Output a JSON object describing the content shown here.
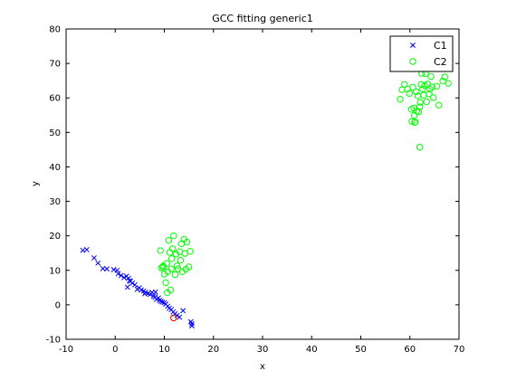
{
  "chart_data": {
    "type": "scatter",
    "title": "GCC fitting generic1",
    "xlabel": "x",
    "ylabel": "y",
    "xlim": [
      -10,
      70
    ],
    "ylim": [
      -10,
      80
    ],
    "xticks": [
      -10,
      0,
      10,
      20,
      30,
      40,
      50,
      60,
      70
    ],
    "yticks": [
      -10,
      0,
      10,
      20,
      30,
      40,
      50,
      60,
      70,
      80
    ],
    "grid": false,
    "legend_position": "top-right",
    "series": [
      {
        "name": "C1",
        "marker": "x",
        "color": "#0000ff",
        "points": [
          [
            -6.6,
            15.8
          ],
          [
            -5.8,
            16.0
          ],
          [
            -4.3,
            13.6
          ],
          [
            -3.5,
            12.1
          ],
          [
            -2.5,
            10.5
          ],
          [
            -1.7,
            10.4
          ],
          [
            -0.3,
            10.2
          ],
          [
            0.4,
            10.0
          ],
          [
            0.6,
            9.0
          ],
          [
            1.2,
            8.5
          ],
          [
            1.8,
            7.9
          ],
          [
            2.3,
            8.3
          ],
          [
            2.7,
            7.7
          ],
          [
            2.9,
            7.0
          ],
          [
            3.1,
            6.8
          ],
          [
            3.5,
            6.3
          ],
          [
            4.0,
            5.8
          ],
          [
            4.5,
            4.5
          ],
          [
            4.9,
            4.9
          ],
          [
            5.3,
            4.3
          ],
          [
            5.8,
            4.0
          ],
          [
            6.2,
            3.6
          ],
          [
            6.7,
            3.3
          ],
          [
            7.1,
            3.0
          ],
          [
            7.5,
            3.6
          ],
          [
            7.8,
            2.5
          ],
          [
            8.1,
            2.2
          ],
          [
            8.4,
            1.6
          ],
          [
            8.8,
            2.0
          ],
          [
            9.0,
            1.3
          ],
          [
            9.3,
            1.0
          ],
          [
            9.6,
            0.8
          ],
          [
            10.0,
            0.6
          ],
          [
            10.3,
            0.2
          ],
          [
            10.7,
            -0.4
          ],
          [
            11.0,
            -1.0
          ],
          [
            11.4,
            -1.4
          ],
          [
            11.8,
            -2.1
          ],
          [
            12.2,
            -2.6
          ],
          [
            12.6,
            -3.1
          ],
          [
            13.1,
            -3.6
          ],
          [
            13.8,
            -1.7
          ],
          [
            15.4,
            -4.9
          ],
          [
            15.6,
            -5.5
          ],
          [
            15.6,
            -6.1
          ],
          [
            8.2,
            3.7
          ],
          [
            6.0,
            3.2
          ],
          [
            2.5,
            5.1
          ]
        ]
      },
      {
        "name": "C2",
        "marker": "o",
        "color": "#00ff00",
        "points": [
          [
            9.2,
            15.7
          ],
          [
            9.4,
            10.7
          ],
          [
            9.8,
            11.3
          ],
          [
            10.0,
            8.9
          ],
          [
            10.3,
            6.4
          ],
          [
            10.5,
            12.0
          ],
          [
            10.7,
            9.6
          ],
          [
            10.9,
            18.7
          ],
          [
            11.1,
            15.2
          ],
          [
            11.3,
            4.3
          ],
          [
            11.4,
            10.4
          ],
          [
            11.5,
            13.4
          ],
          [
            11.7,
            16.3
          ],
          [
            11.9,
            20.0
          ],
          [
            12.2,
            8.8
          ],
          [
            12.4,
            14.7
          ],
          [
            12.6,
            11.3
          ],
          [
            12.8,
            10.4
          ],
          [
            13.1,
            15.4
          ],
          [
            13.3,
            12.9
          ],
          [
            13.5,
            17.7
          ],
          [
            13.7,
            9.6
          ],
          [
            14.0,
            19.0
          ],
          [
            14.2,
            14.9
          ],
          [
            14.4,
            10.3
          ],
          [
            14.6,
            18.2
          ],
          [
            15.0,
            11.0
          ],
          [
            15.3,
            15.5
          ],
          [
            10.6,
            3.5
          ],
          [
            9.7,
            11.0
          ],
          [
            11.9,
            -3.8
          ],
          [
            58.0,
            59.6
          ],
          [
            58.4,
            62.4
          ],
          [
            58.9,
            63.9
          ],
          [
            59.5,
            62.6
          ],
          [
            59.9,
            61.3
          ],
          [
            60.3,
            56.7
          ],
          [
            60.4,
            53.2
          ],
          [
            60.6,
            63.1
          ],
          [
            60.8,
            57.1
          ],
          [
            60.9,
            54.9
          ],
          [
            61.1,
            53.0
          ],
          [
            61.3,
            61.8
          ],
          [
            61.4,
            56.2
          ],
          [
            61.6,
            60.6
          ],
          [
            61.8,
            56.0
          ],
          [
            62.0,
            45.7
          ],
          [
            62.1,
            58.7
          ],
          [
            62.3,
            63.9
          ],
          [
            62.4,
            67.1
          ],
          [
            62.6,
            62.6
          ],
          [
            62.8,
            60.8
          ],
          [
            63.0,
            63.6
          ],
          [
            63.2,
            67.0
          ],
          [
            63.4,
            58.9
          ],
          [
            63.6,
            64.0
          ],
          [
            63.9,
            61.2
          ],
          [
            64.1,
            62.5
          ],
          [
            64.3,
            66.2
          ],
          [
            64.5,
            63.2
          ],
          [
            64.8,
            60.1
          ],
          [
            65.5,
            63.4
          ],
          [
            65.9,
            57.9
          ],
          [
            66.7,
            64.9
          ],
          [
            67.1,
            66.1
          ],
          [
            67.8,
            64.2
          ],
          [
            61.0,
            52.9
          ],
          [
            62.0,
            57.4
          ]
        ]
      }
    ]
  }
}
